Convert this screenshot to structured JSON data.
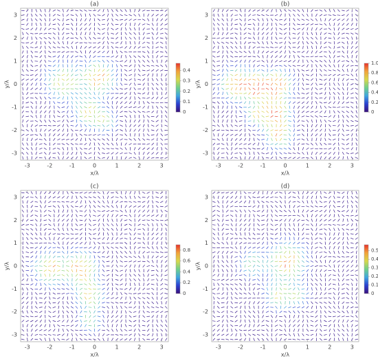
{
  "chart_data": [
    {
      "type": "quiver",
      "title": "(a)",
      "xlabel": "x/λ",
      "ylabel": "y/λ",
      "xlim": [
        -3.3,
        3.3
      ],
      "ylim": [
        -3.3,
        3.3
      ],
      "xticks": [
        -3,
        -2,
        -1,
        0,
        1,
        2,
        3
      ],
      "yticks": [
        -3,
        -2,
        -1,
        0,
        1,
        2,
        3
      ],
      "colormap": [
        "#3a0f7a",
        "#2a3fd0",
        "#3fa6e0",
        "#6fd08a",
        "#d8d84a",
        "#f2a23a",
        "#e8322a"
      ],
      "colorbar": {
        "lim": [
          0,
          0.47
        ],
        "ticks": [
          0,
          0.1,
          0.2,
          0.3,
          0.4
        ]
      }
    },
    {
      "type": "quiver",
      "title": "(b)",
      "xlabel": "x/λ",
      "ylabel": "y/λ",
      "xlim": [
        -3.3,
        3.3
      ],
      "ylim": [
        -3.3,
        3.3
      ],
      "xticks": [
        -3,
        -2,
        -1,
        0,
        1,
        2,
        3
      ],
      "yticks": [
        -3,
        -2,
        -1,
        0,
        1,
        2,
        3
      ],
      "colormap": [
        "#3a0f7a",
        "#2a3fd0",
        "#3fa6e0",
        "#6fd08a",
        "#d8d84a",
        "#f2a23a",
        "#e8322a"
      ],
      "colorbar": {
        "lim": [
          0,
          1
        ],
        "ticks": [
          0,
          0.2,
          0.4,
          0.6,
          0.8,
          {
            "value": 1,
            "label": "1.0"
          }
        ]
      }
    },
    {
      "type": "quiver",
      "title": "(c)",
      "xlabel": "x/λ",
      "ylabel": "y/λ",
      "xlim": [
        -3.3,
        3.3
      ],
      "ylim": [
        -3.3,
        3.3
      ],
      "xticks": [
        -3,
        -2,
        -1,
        0,
        1,
        2,
        3
      ],
      "yticks": [
        -3,
        -2,
        -1,
        0,
        1,
        2,
        3
      ],
      "colormap": [
        "#3a0f7a",
        "#2a3fd0",
        "#3fa6e0",
        "#6fd08a",
        "#d8d84a",
        "#f2a23a",
        "#e8322a"
      ],
      "colorbar": {
        "lim": [
          0,
          0.9
        ],
        "ticks": [
          0,
          0.2,
          0.4,
          0.6,
          0.8
        ]
      }
    },
    {
      "type": "quiver",
      "title": "(d)",
      "xlabel": "x/λ",
      "ylabel": "y/λ",
      "xlim": [
        -3.3,
        3.3
      ],
      "ylim": [
        -3.3,
        3.3
      ],
      "xticks": [
        -3,
        -2,
        -1,
        0,
        1,
        2,
        3
      ],
      "yticks": [
        -3,
        -2,
        -1,
        0,
        1,
        2,
        3
      ],
      "colormap": [
        "#3a0f7a",
        "#2a3fd0",
        "#3fa6e0",
        "#6fd08a",
        "#d8d84a",
        "#f2a23a",
        "#e8322a"
      ],
      "colorbar": {
        "lim": [
          0,
          0.57
        ],
        "ticks": [
          0,
          0.1,
          0.2,
          0.3,
          0.4,
          0.5
        ]
      }
    }
  ]
}
